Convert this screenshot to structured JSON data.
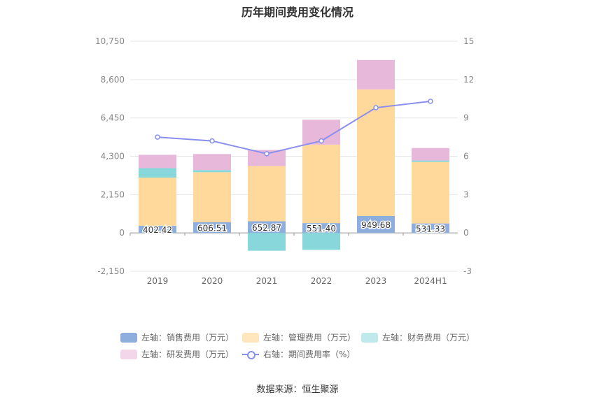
{
  "title": "历年期间费用变化情况",
  "source_note": "数据来源：恒生聚源",
  "chart_data": {
    "type": "bar",
    "stacked": true,
    "categories": [
      "2019",
      "2020",
      "2021",
      "2022",
      "2023",
      "2024H1"
    ],
    "left_axis": {
      "ticks": [
        "10,750",
        "8,600",
        "6,450",
        "4,300",
        "2,150",
        "0",
        "-2,150"
      ],
      "range": [
        -2150,
        10750
      ]
    },
    "right_axis": {
      "ticks": [
        "15",
        "12",
        "9",
        "6",
        "3",
        "0",
        "-3"
      ],
      "range": [
        -3,
        15
      ]
    },
    "series": [
      {
        "name": "左轴：销售费用（万元）",
        "axis": "left",
        "color": "#8eaede",
        "values": [
          402.42,
          606.51,
          652.87,
          551.4,
          949.68,
          531.33
        ],
        "labels": [
          "402.42",
          "606.51",
          "652.87",
          "551.40",
          "949.68",
          "531.33"
        ]
      },
      {
        "name": "左轴：管理费用（万元）",
        "axis": "left",
        "color": "#ffd99b",
        "values": [
          2700,
          2800,
          3100,
          4400,
          7100,
          3450
        ]
      },
      {
        "name": "左轴：财务费用（万元）",
        "axis": "left",
        "color": "#88d8db",
        "values": [
          530,
          120,
          -1000,
          -950,
          0,
          80
        ]
      },
      {
        "name": "左轴：研发费用（万元）",
        "axis": "left",
        "color": "#e8b8db",
        "values": [
          750,
          900,
          900,
          1400,
          1650,
          700
        ]
      },
      {
        "name": "右轴：期间费用率（%）",
        "axis": "right",
        "type": "line",
        "color": "#8a8fee",
        "values": [
          7.5,
          7.2,
          6.2,
          7.2,
          9.8,
          10.3
        ]
      }
    ]
  },
  "legend": [
    {
      "label": "左轴：销售费用（万元）",
      "color": "#8eaede",
      "kind": "box"
    },
    {
      "label": "左轴：管理费用（万元）",
      "color": "#ffe6bd",
      "kind": "box"
    },
    {
      "label": "左轴：财务费用（万元）",
      "color": "#bfe9ea",
      "kind": "box"
    },
    {
      "label": "左轴：研发费用（万元）",
      "color": "#f3d6ea",
      "kind": "box"
    },
    {
      "label": "右轴：期间费用率（%）",
      "color": "#8a8fee",
      "kind": "line"
    }
  ]
}
